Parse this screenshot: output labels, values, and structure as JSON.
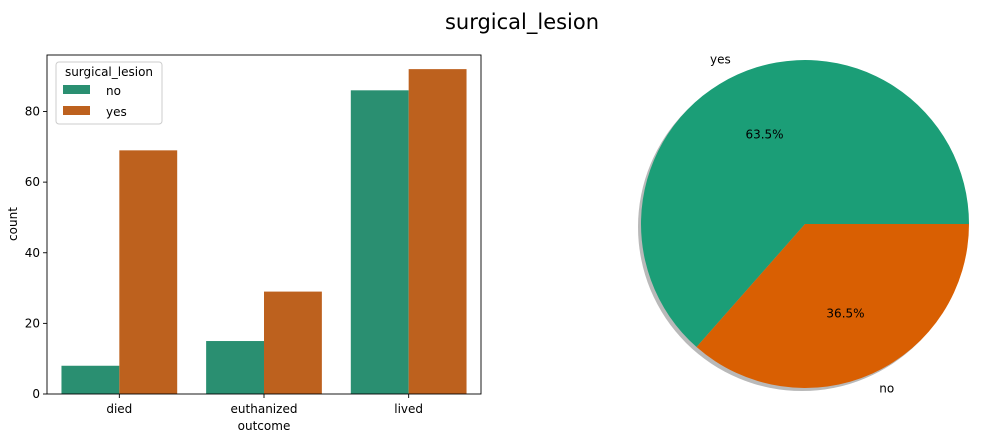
{
  "figure": {
    "title": "surgical_lesion"
  },
  "chart_data": [
    {
      "type": "bar",
      "categories": [
        "died",
        "euthanized",
        "lived"
      ],
      "series": [
        {
          "name": "no",
          "values": [
            8,
            15,
            86
          ]
        },
        {
          "name": "yes",
          "values": [
            69,
            29,
            92
          ]
        }
      ],
      "xlabel": "outcome",
      "ylabel": "count",
      "ylim": [
        0,
        96
      ],
      "yticks": [
        "0",
        "20",
        "40",
        "60",
        "80"
      ],
      "legend": {
        "title": "surgical_lesion",
        "placement": "top-left"
      },
      "grid": false,
      "colors": {
        "no": "#2a8f71",
        "yes": "#bd611e"
      }
    },
    {
      "type": "pie",
      "slices": [
        {
          "label": "yes",
          "value": 63.5,
          "pct_label": "63.5%"
        },
        {
          "label": "no",
          "value": 36.5,
          "pct_label": "36.5%"
        }
      ],
      "shadow": true,
      "colors": {
        "yes": "#1b9e77",
        "no": "#d95f02"
      }
    }
  ]
}
